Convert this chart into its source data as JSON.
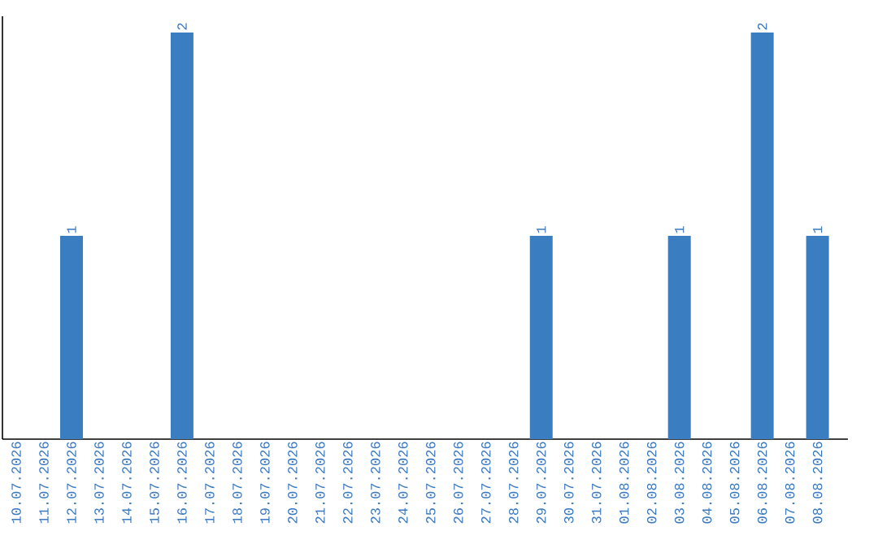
{
  "chart_data": {
    "type": "bar",
    "categories": [
      "10.07.2026",
      "11.07.2026",
      "12.07.2026",
      "13.07.2026",
      "14.07.2026",
      "15.07.2026",
      "16.07.2026",
      "17.07.2026",
      "18.07.2026",
      "19.07.2026",
      "20.07.2026",
      "21.07.2026",
      "22.07.2026",
      "23.07.2026",
      "24.07.2026",
      "25.07.2026",
      "26.07.2026",
      "27.07.2026",
      "28.07.2026",
      "29.07.2026",
      "30.07.2026",
      "31.07.2026",
      "01.08.2026",
      "02.08.2026",
      "03.08.2026",
      "04.08.2026",
      "05.08.2026",
      "06.08.2026",
      "07.08.2026",
      "08.08.2026"
    ],
    "values": [
      0,
      0,
      1,
      0,
      0,
      0,
      2,
      0,
      0,
      0,
      0,
      0,
      0,
      0,
      0,
      0,
      0,
      0,
      0,
      1,
      0,
      0,
      0,
      0,
      1,
      0,
      0,
      2,
      0,
      1
    ],
    "value_labels": [
      null,
      null,
      "1",
      null,
      null,
      null,
      "2",
      null,
      null,
      null,
      null,
      null,
      null,
      null,
      null,
      null,
      null,
      null,
      null,
      "1",
      null,
      null,
      null,
      null,
      "1",
      null,
      null,
      "2",
      null,
      "1"
    ],
    "color": "#3b7dc1",
    "ylim": [
      0,
      2.08
    ],
    "tick_labels": "x"
  }
}
